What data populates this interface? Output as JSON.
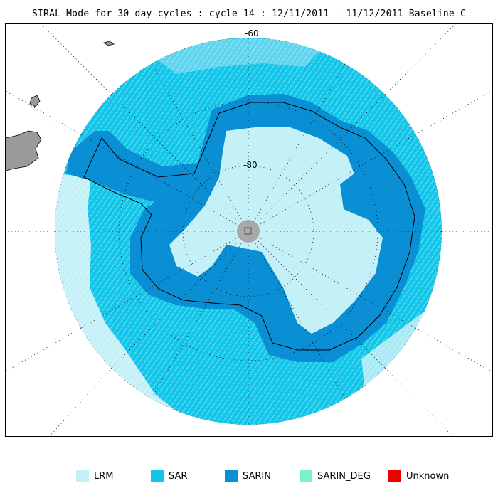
{
  "title": "SIRAL Mode for 30 day cycles : cycle 14 : 12/11/2011 - 11/12/2011 Baseline-C",
  "map": {
    "lat_labels": [
      "-60",
      "-80"
    ],
    "colors": {
      "ocean_circle_edge": "#b8ecf6",
      "sar": "#12c6ea",
      "sarin": "#0a8ed4",
      "lrm": "#c4f0f7",
      "land_grey": "#9a9a9a",
      "pole": "#a8a8a8",
      "graticule": "#000000"
    }
  },
  "legend": [
    {
      "label": "LRM",
      "color": "#c4f0f7"
    },
    {
      "label": "SAR",
      "color": "#12c6ea"
    },
    {
      "label": "SARIN",
      "color": "#0a8ed4"
    },
    {
      "label": "SARIN_DEG",
      "color": "#7af2cf"
    },
    {
      "label": "Unknown",
      "color": "#ee0000"
    }
  ]
}
